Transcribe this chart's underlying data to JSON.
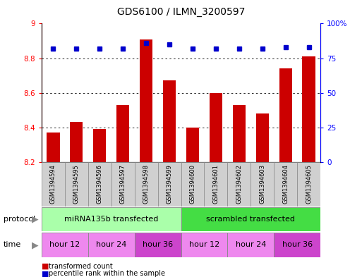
{
  "title": "GDS6100 / ILMN_3200597",
  "samples": [
    "GSM1394594",
    "GSM1394595",
    "GSM1394596",
    "GSM1394597",
    "GSM1394598",
    "GSM1394599",
    "GSM1394600",
    "GSM1394601",
    "GSM1394602",
    "GSM1394603",
    "GSM1394604",
    "GSM1394605"
  ],
  "transformed_counts": [
    8.37,
    8.43,
    8.39,
    8.53,
    8.91,
    8.67,
    8.4,
    8.6,
    8.53,
    8.48,
    8.74,
    8.81
  ],
  "percentile_rank_values": [
    0.82,
    0.82,
    0.82,
    0.82,
    0.86,
    0.85,
    0.82,
    0.82,
    0.82,
    0.82,
    0.83,
    0.83
  ],
  "bar_color": "#cc0000",
  "dot_color": "#0000cc",
  "ylim_left": [
    8.2,
    9.0
  ],
  "ylim_right": [
    0,
    100
  ],
  "yticks_left": [
    8.2,
    8.4,
    8.6,
    8.8,
    9.0
  ],
  "ytick_labels_left": [
    "8.2",
    "8.4",
    "8.6",
    "8.8",
    "9"
  ],
  "yticks_right": [
    0,
    25,
    50,
    75,
    100
  ],
  "ytick_labels_right": [
    "0",
    "25",
    "50",
    "75",
    "100%"
  ],
  "grid_values": [
    8.4,
    8.6,
    8.8
  ],
  "protocol_groups": [
    {
      "label": "miRNA135b transfected",
      "start": 0,
      "end": 6,
      "color": "#aaffaa"
    },
    {
      "label": "scrambled transfected",
      "start": 6,
      "end": 12,
      "color": "#44dd44"
    }
  ],
  "time_groups": [
    {
      "label": "hour 12",
      "start": 0,
      "end": 2,
      "color": "#ee88ee"
    },
    {
      "label": "hour 24",
      "start": 2,
      "end": 4,
      "color": "#ee88ee"
    },
    {
      "label": "hour 36",
      "start": 4,
      "end": 6,
      "color": "#cc44cc"
    },
    {
      "label": "hour 12",
      "start": 6,
      "end": 8,
      "color": "#ee88ee"
    },
    {
      "label": "hour 24",
      "start": 8,
      "end": 10,
      "color": "#ee88ee"
    },
    {
      "label": "hour 36",
      "start": 10,
      "end": 12,
      "color": "#cc44cc"
    }
  ],
  "bar_base": 8.2,
  "sample_box_color": "#d0d0d0",
  "background_color": "#ffffff",
  "title_fontsize": 10,
  "tick_fontsize": 7.5,
  "sample_fontsize": 6,
  "row_fontsize": 8
}
